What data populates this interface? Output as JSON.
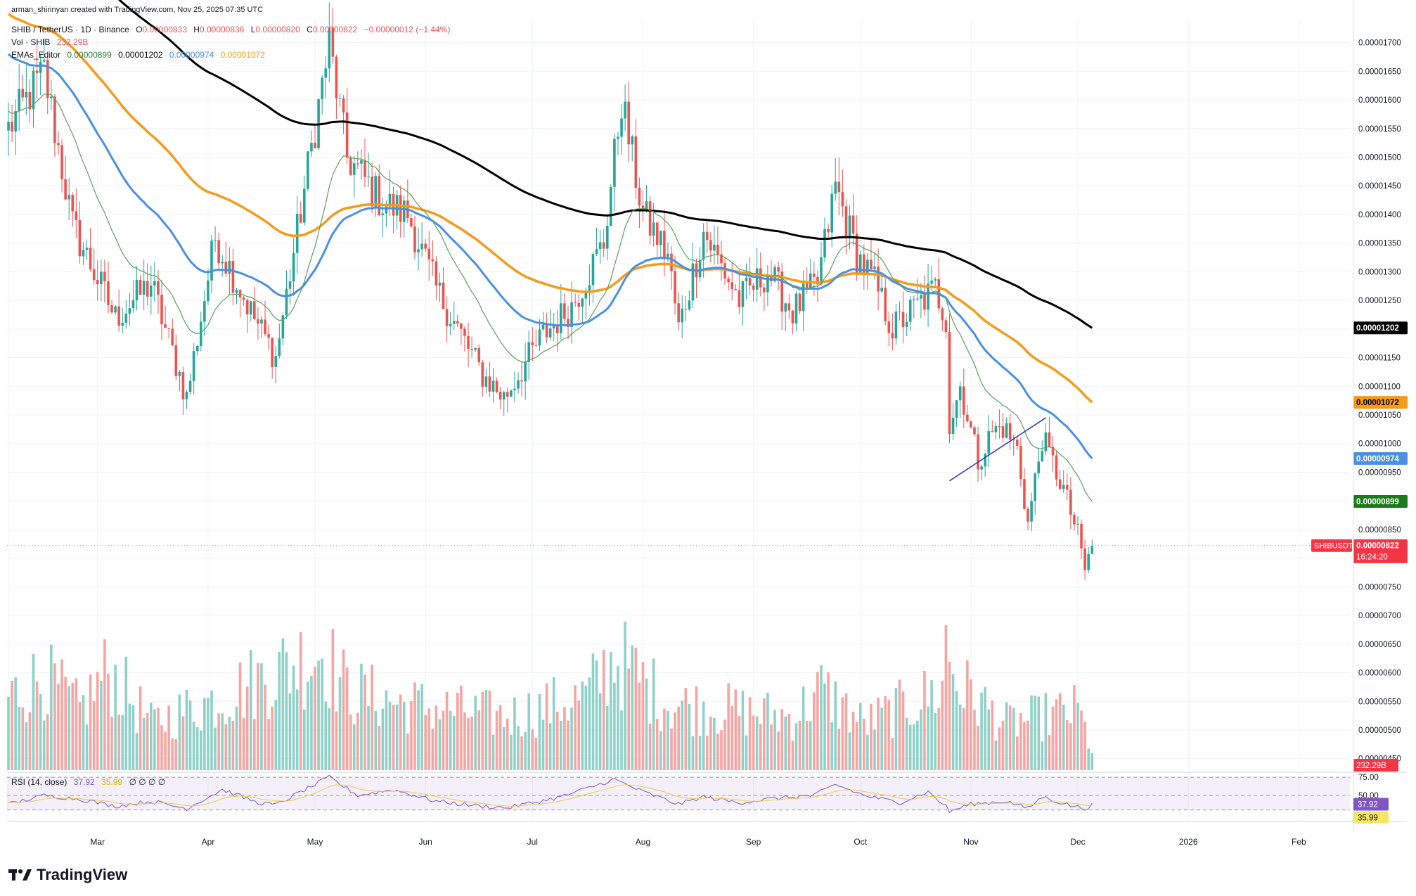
{
  "header": {
    "attribution": "arman_shirinyan created with TradingView.com, Nov 25, 2025 07:35 UTC",
    "symbol_line": "SHIB / TetherUS · 1D · Binance",
    "ohlc": {
      "o_label": "O",
      "o": "0.00000833",
      "h_label": "H",
      "h": "0.00000836",
      "l_label": "L",
      "l": "0.00000820",
      "c_label": "C",
      "c": "0.00000822",
      "change": "−0.00000012 (−1.44%)"
    },
    "vol_line": {
      "label": "Vol · SHIB",
      "value": "232.29B"
    },
    "emas_line": {
      "label": "EMAs_Editor",
      "v1": "0.00000899",
      "v2": "0.00001202",
      "v3": "0.00000974",
      "v4": "0.00001072"
    },
    "rsi_line": {
      "label": "RSI (14, close)",
      "v1": "37.92",
      "v2": "35.99",
      "rest": "∅ ∅ ∅ ∅"
    }
  },
  "colors": {
    "up": "#26a69a",
    "down": "#ef5350",
    "vol_up": "#8fd1c8",
    "vol_down": "#f5a5a3",
    "ema20": "#5aa05a",
    "ema50": "#4a90e2",
    "ema100": "#f59b1a",
    "ema200": "#000000",
    "rsi": "#7e57c2",
    "rsi_ma": "#f2c94c",
    "trendline": "#2f3ec9"
  },
  "chart_data": [
    {
      "type": "candlestick",
      "title": "SHIB / TetherUS · 1D · Binance",
      "x_axis_labels": [
        "Mar",
        "Apr",
        "May",
        "Jun",
        "Jul",
        "Aug",
        "Sep",
        "Oct",
        "Nov",
        "Dec",
        "2026",
        "Feb"
      ],
      "y_axis_labels": [
        "0.00001700",
        "0.00001650",
        "0.00001600",
        "0.00001550",
        "0.00001500",
        "0.00001450",
        "0.00001400",
        "0.00001350",
        "0.00001300",
        "0.00001250",
        "0.00001150",
        "0.00001100",
        "0.00001050",
        "0.00001000",
        "0.00000950",
        "0.00000850",
        "0.00000750",
        "0.00000700",
        "0.00000650",
        "0.00000600",
        "0.00000550",
        "0.00000500",
        "0.00000450"
      ],
      "ylim": [
        4.3e-06,
        1.74e-05
      ],
      "anchors_close": [
        [
          0,
          1.55e-05
        ],
        [
          10,
          1.65e-05
        ],
        [
          18,
          1.38e-05
        ],
        [
          30,
          1.22e-05
        ],
        [
          40,
          1.28e-05
        ],
        [
          50,
          1.08e-05
        ],
        [
          58,
          1.36e-05
        ],
        [
          68,
          1.23e-05
        ],
        [
          75,
          1.15e-05
        ],
        [
          90,
          1.7e-05
        ],
        [
          95,
          1.5e-05
        ],
        [
          105,
          1.42e-05
        ],
        [
          112,
          1.4e-05
        ],
        [
          120,
          1.27e-05
        ],
        [
          133,
          1.12e-05
        ],
        [
          139,
          1.08e-05
        ],
        [
          150,
          1.19e-05
        ],
        [
          158,
          1.24e-05
        ],
        [
          167,
          1.35e-05
        ],
        [
          172,
          1.6e-05
        ],
        [
          178,
          1.4e-05
        ],
        [
          185,
          1.33e-05
        ],
        [
          188,
          1.2e-05
        ],
        [
          195,
          1.37e-05
        ],
        [
          205,
          1.25e-05
        ],
        [
          213,
          1.3e-05
        ],
        [
          220,
          1.23e-05
        ],
        [
          227,
          1.28e-05
        ],
        [
          232,
          1.45e-05
        ],
        [
          238,
          1.33e-05
        ],
        [
          243,
          1.28e-05
        ],
        [
          248,
          1.2e-05
        ],
        [
          260,
          1.27e-05
        ],
        [
          263,
          1.22e-05
        ],
        [
          264,
          1.03e-05
        ],
        [
          267,
          1.1e-05
        ],
        [
          272,
          9.7e-06
        ],
        [
          276,
          1.02e-05
        ],
        [
          279,
          1.03e-05
        ],
        [
          283,
          9.9e-06
        ],
        [
          286,
          8.6e-06
        ],
        [
          290,
          1.01e-05
        ],
        [
          296,
          9.2e-06
        ],
        [
          300,
          8.4e-06
        ],
        [
          302,
          7.8e-06
        ],
        [
          304,
          8.2e-06
        ]
      ],
      "candle_count": 305,
      "overlays": [
        {
          "name": "EMA 20",
          "last": "0.00000899"
        },
        {
          "name": "EMA 200",
          "last": "0.00001202"
        },
        {
          "name": "EMA 50",
          "last": "0.00000974"
        },
        {
          "name": "EMA 100",
          "last": "0.00001072"
        }
      ],
      "annotations": [
        {
          "type": "trendline",
          "from": [
            264,
            9.35e-06
          ],
          "to": [
            291,
            1.045e-05
          ]
        }
      ],
      "last_price_label": {
        "symbol": "SHIBUSDT",
        "price": "0.00000822",
        "countdown": "16:24:20"
      }
    },
    {
      "type": "bar",
      "title": "Vol · SHIB",
      "last_label": "232.29B",
      "anchors": [
        [
          0,
          0.55
        ],
        [
          10,
          0.7
        ],
        [
          20,
          0.45
        ],
        [
          28,
          0.75
        ],
        [
          40,
          0.35
        ],
        [
          60,
          0.55
        ],
        [
          88,
          0.9
        ],
        [
          95,
          0.6
        ],
        [
          110,
          0.5
        ],
        [
          140,
          0.4
        ],
        [
          162,
          0.55
        ],
        [
          170,
          0.85
        ],
        [
          185,
          0.5
        ],
        [
          220,
          0.4
        ],
        [
          228,
          0.6
        ],
        [
          240,
          0.35
        ],
        [
          262,
          0.6
        ],
        [
          263,
          1.0
        ],
        [
          266,
          0.65
        ],
        [
          280,
          0.35
        ],
        [
          300,
          0.45
        ],
        [
          304,
          0.15
        ]
      ]
    },
    {
      "type": "line",
      "title": "RSI (14, close)",
      "ylim": [
        20,
        80
      ],
      "levels": [
        "75.00",
        "50.00"
      ],
      "last_labels": [
        "37.92",
        "35.99"
      ],
      "anchors_rsi": [
        [
          0,
          38
        ],
        [
          10,
          50
        ],
        [
          20,
          45
        ],
        [
          30,
          35
        ],
        [
          40,
          42
        ],
        [
          50,
          32
        ],
        [
          60,
          58
        ],
        [
          70,
          40
        ],
        [
          75,
          37
        ],
        [
          90,
          75
        ],
        [
          98,
          50
        ],
        [
          108,
          58
        ],
        [
          120,
          42
        ],
        [
          133,
          35
        ],
        [
          140,
          33
        ],
        [
          155,
          48
        ],
        [
          170,
          72
        ],
        [
          178,
          55
        ],
        [
          188,
          38
        ],
        [
          195,
          48
        ],
        [
          205,
          40
        ],
        [
          215,
          46
        ],
        [
          226,
          50
        ],
        [
          232,
          65
        ],
        [
          240,
          50
        ],
        [
          250,
          40
        ],
        [
          258,
          55
        ],
        [
          263,
          35
        ],
        [
          264,
          28
        ],
        [
          270,
          38
        ],
        [
          280,
          42
        ],
        [
          286,
          32
        ],
        [
          290,
          48
        ],
        [
          298,
          36
        ],
        [
          302,
          32
        ],
        [
          304,
          37
        ]
      ]
    }
  ],
  "footer": {
    "brand": "TradingView"
  }
}
